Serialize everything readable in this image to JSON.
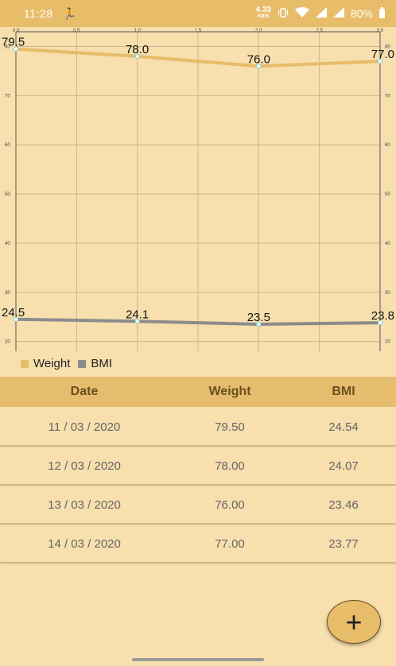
{
  "status": {
    "time": "11:28",
    "speed_value": "4.33",
    "speed_unit": "KB/S",
    "battery": "80%",
    "icons": [
      "running-icon",
      "vibrate-icon",
      "wifi-icon",
      "signal-icon",
      "signal-icon-2",
      "battery-icon"
    ]
  },
  "chart_data": {
    "type": "line",
    "x": [
      0,
      1,
      2,
      3
    ],
    "x_ticks": [
      "0.0",
      "0.5",
      "1.0",
      "1.5",
      "2.0",
      "2.5",
      "3.0"
    ],
    "y_ticks": [
      "20",
      "30",
      "40",
      "50",
      "60",
      "70",
      "80"
    ],
    "xlim": [
      0,
      3
    ],
    "ylim": [
      18,
      83
    ],
    "grid": true,
    "legend_position": "bottom-left",
    "series": [
      {
        "name": "Weight",
        "color": "#e6bc6a",
        "values": [
          79.5,
          78.0,
          76.0,
          77.0
        ],
        "labels": [
          "79.5",
          "78.0",
          "76.0",
          "77.0"
        ]
      },
      {
        "name": "BMI",
        "color": "#8c8c8c",
        "values": [
          24.5,
          24.1,
          23.5,
          23.8
        ],
        "labels": [
          "24.5",
          "24.1",
          "23.5",
          "23.8"
        ]
      }
    ]
  },
  "legend": {
    "weight": "Weight",
    "bmi": "BMI"
  },
  "table": {
    "headers": {
      "date": "Date",
      "weight": "Weight",
      "bmi": "BMI"
    },
    "rows": [
      {
        "date": "11 / 03 / 2020",
        "weight": "79.50",
        "bmi": "24.54"
      },
      {
        "date": "12 / 03 / 2020",
        "weight": "78.00",
        "bmi": "24.07"
      },
      {
        "date": "13 / 03 / 2020",
        "weight": "76.00",
        "bmi": "23.46"
      },
      {
        "date": "14 / 03 / 2020",
        "weight": "77.00",
        "bmi": "23.77"
      }
    ]
  },
  "fab": {
    "label": "+"
  },
  "colors": {
    "background": "#f7dfae",
    "accent": "#e8bd6a",
    "header_text": "#6b4e1f"
  }
}
